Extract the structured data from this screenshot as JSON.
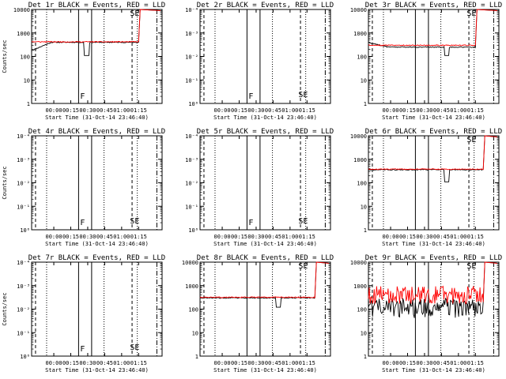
{
  "colors": {
    "background": "#ffffff",
    "events": "#000000",
    "lld": "#ff0000",
    "axis": "#000000"
  },
  "chart_data": [
    {
      "type": "line",
      "title": "Det 1r BLACK = Events, RED = LLD",
      "ylabel": "Counts/sec",
      "xlabel": "Start Time (31-Oct-14 23:46:40)",
      "ylim": [
        1,
        10000
      ],
      "yscale": "log",
      "ytick_style": "decimal",
      "yticks": [
        "1",
        "10",
        "100",
        "1000",
        "10000"
      ],
      "xticks": [
        "00:00",
        "00:15",
        "00:30",
        "00:45",
        "01:00",
        "01:15"
      ],
      "has_data": true,
      "mode": "normal",
      "events": {
        "base": 400,
        "start": 0,
        "end": 0.82,
        "dip_at": 0.42,
        "dip_to": 110,
        "spike_after": 0.82,
        "spike_to": 10000,
        "level_drift": -0.35
      },
      "lld": {
        "base": 420,
        "start": 0,
        "end": 0.82,
        "spike_to": 10000
      },
      "markers": [
        "F",
        "SE"
      ]
    },
    {
      "type": "line",
      "title": "Det 2r BLACK = Events, RED = LLD",
      "ylabel": "",
      "xlabel": "Start Time (31-Oct-14 23:46:40)",
      "ylim": [
        1,
        10000
      ],
      "yscale": "log",
      "ytick_style": "exp",
      "yticks": [
        "10⁰",
        "10⁻¹",
        "10⁻²",
        "10⁻³",
        "10⁻⁴"
      ],
      "xticks": [
        "00:00",
        "00:15",
        "00:30",
        "00:45",
        "01:00",
        "01:15"
      ],
      "has_data": false,
      "mode": "empty",
      "markers": [
        "F",
        "SE"
      ]
    },
    {
      "type": "line",
      "title": "Det 3r BLACK = Events, RED = LLD",
      "ylabel": "",
      "xlabel": "Start Time (31-Oct-14 23:46:40)",
      "ylim": [
        1,
        10000
      ],
      "yscale": "log",
      "ytick_style": "decimal",
      "yticks": [
        "1",
        "10",
        "100",
        "1000",
        "10000"
      ],
      "xticks": [
        "00:00",
        "00:15",
        "00:30",
        "00:45",
        "01:00",
        "01:15"
      ],
      "has_data": true,
      "mode": "normal",
      "events": {
        "base": 250,
        "start": 0,
        "end": 0.82,
        "dip_at": 0.6,
        "dip_to": 110,
        "spike_after": 0.82,
        "spike_to": 10000,
        "level_drift": 0.2
      },
      "lld": {
        "base": 300,
        "start": 0,
        "end": 0.82,
        "spike_to": 10000
      },
      "markers": [
        "SE"
      ]
    },
    {
      "type": "line",
      "title": "Det 4r BLACK = Events, RED = LLD",
      "ylabel": "Counts/sec",
      "xlabel": "Start Time (31-Oct-14 23:46:40)",
      "ylim": [
        1,
        10000
      ],
      "yscale": "log",
      "ytick_style": "exp",
      "yticks": [
        "10⁰",
        "10⁻¹",
        "10⁻²",
        "10⁻³",
        "10⁻⁴"
      ],
      "xticks": [
        "00:00",
        "00:15",
        "00:30",
        "00:45",
        "01:00",
        "01:15"
      ],
      "has_data": false,
      "mode": "empty",
      "markers": [
        "F",
        "SE"
      ]
    },
    {
      "type": "line",
      "title": "Det 5r BLACK = Events, RED = LLD",
      "ylabel": "",
      "xlabel": "Start Time (31-Oct-14 23:46:40)",
      "ylim": [
        1,
        10000
      ],
      "yscale": "log",
      "ytick_style": "exp",
      "yticks": [
        "10⁰",
        "10⁻¹",
        "10⁻²",
        "10⁻³",
        "10⁻⁴"
      ],
      "xticks": [
        "00:00",
        "00:15",
        "00:30",
        "00:45",
        "01:00",
        "01:15"
      ],
      "has_data": false,
      "mode": "empty",
      "markers": [
        "F",
        "SE"
      ]
    },
    {
      "type": "line",
      "title": "Det 6r BLACK = Events, RED = LLD",
      "ylabel": "",
      "xlabel": "Start Time (31-Oct-14 23:46:40)",
      "ylim": [
        1,
        10000
      ],
      "yscale": "log",
      "ytick_style": "decimal",
      "yticks": [
        "1",
        "10",
        "100",
        "1000",
        "10000"
      ],
      "xticks": [
        "00:00",
        "00:15",
        "00:30",
        "00:45",
        "01:00",
        "01:15"
      ],
      "has_data": true,
      "mode": "normal",
      "events": {
        "base": 360,
        "start": 0,
        "end": 0.88,
        "dip_at": 0.6,
        "dip_to": 110,
        "spike_after": 0.88,
        "spike_to": 10000,
        "level_drift": 0.0
      },
      "lld": {
        "base": 380,
        "start": 0,
        "end": 0.88,
        "spike_to": 10000
      },
      "markers": [
        "SE"
      ]
    },
    {
      "type": "line",
      "title": "Det 7r BLACK = Events, RED = LLD",
      "ylabel": "Counts/sec",
      "xlabel": "Start Time (31-Oct-14 23:46:40)",
      "ylim": [
        1,
        10000
      ],
      "yscale": "log",
      "ytick_style": "exp",
      "yticks": [
        "10⁰",
        "10⁻¹",
        "10⁻²",
        "10⁻³",
        "10⁻⁴"
      ],
      "xticks": [
        "00:00",
        "00:15",
        "00:30",
        "00:45",
        "01:00",
        "01:15"
      ],
      "has_data": false,
      "mode": "empty",
      "markers": [
        "F",
        "SE"
      ]
    },
    {
      "type": "line",
      "title": "Det 8r BLACK = Events, RED = LLD",
      "ylabel": "",
      "xlabel": "Start Time (31-Oct-14 23:46:40)",
      "ylim": [
        1,
        10000
      ],
      "yscale": "log",
      "ytick_style": "decimal",
      "yticks": [
        "1",
        "10",
        "100",
        "1000",
        "10000"
      ],
      "xticks": [
        "00:00",
        "00:15",
        "00:30",
        "00:45",
        "01:00",
        "01:15"
      ],
      "has_data": true,
      "mode": "normal",
      "events": {
        "base": 300,
        "start": 0,
        "end": 0.88,
        "dip_at": 0.6,
        "dip_to": 120,
        "spike_after": 0.88,
        "spike_to": 10000,
        "level_drift": 0.0
      },
      "lld": {
        "base": 320,
        "start": 0,
        "end": 0.88,
        "spike_to": 10000
      },
      "markers": [
        "SE"
      ]
    },
    {
      "type": "line",
      "title": "Det 9r BLACK = Events, RED = LLD",
      "ylabel": "",
      "xlabel": "Start Time (31-Oct-14 23:46:40)",
      "ylim": [
        1,
        10000
      ],
      "yscale": "log",
      "ytick_style": "decimal",
      "yticks": [
        "1",
        "10",
        "100",
        "1000",
        "10000"
      ],
      "xticks": [
        "00:00",
        "00:15",
        "00:30",
        "00:45",
        "01:00",
        "01:15"
      ],
      "has_data": true,
      "mode": "noisy",
      "events": {
        "base": 110,
        "start": 0,
        "end": 0.88,
        "spike_after": 0.88,
        "spike_to": 10000
      },
      "lld": {
        "base": 400,
        "start": 0,
        "end": 0.88,
        "spike_to": 10000
      },
      "markers": [
        "SE"
      ]
    }
  ]
}
